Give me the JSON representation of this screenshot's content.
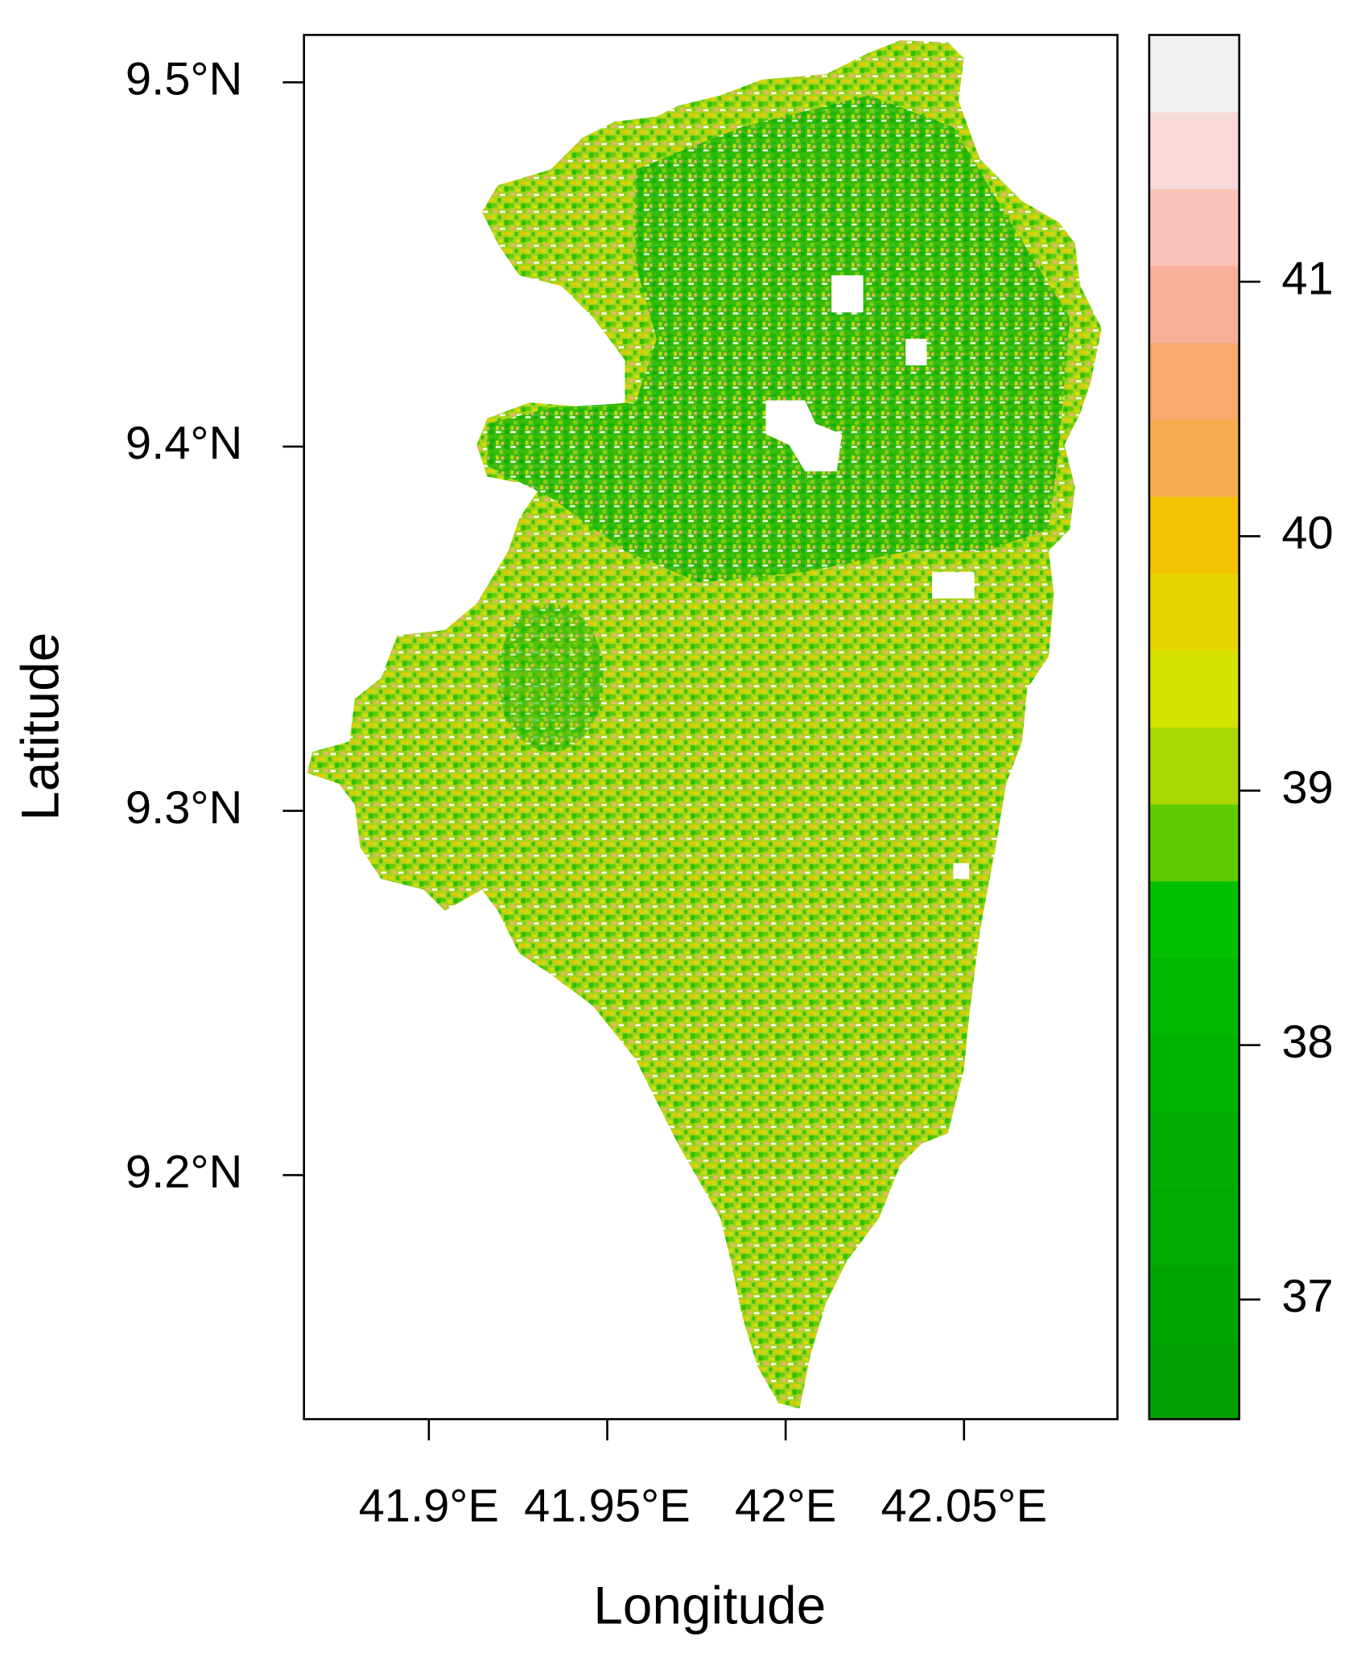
{
  "chart_data": {
    "type": "raster-map",
    "x_label": "Longitude",
    "y_label": "Latitude",
    "xlim": [
      41.865,
      42.093
    ],
    "xticks": [
      {
        "value": 41.9,
        "label": "41.9°E"
      },
      {
        "value": 41.95,
        "label": "41.95°E"
      },
      {
        "value": 42,
        "label": "42°E"
      },
      {
        "value": 42.05,
        "label": "42.05°E"
      }
    ],
    "ylim": [
      9.133,
      9.513
    ],
    "yticks": [
      {
        "value": 9.2,
        "label": "9.2°N"
      },
      {
        "value": 9.3,
        "label": "9.3°N"
      },
      {
        "value": 9.4,
        "label": "9.4°N"
      },
      {
        "value": 9.5,
        "label": "9.5°N"
      }
    ],
    "colorbar": {
      "lim": [
        36.53,
        41.97
      ],
      "ticks": [
        37,
        38,
        39,
        40,
        41
      ],
      "colors": [
        "#00a000",
        "#00a500",
        "#00aa00",
        "#00ae00",
        "#00b300",
        "#00b800",
        "#00c000",
        "#5ecc00",
        "#a8d800",
        "#d4e200",
        "#e8d400",
        "#f2c200",
        "#f6ad4d",
        "#f8a96e",
        "#f9b09a",
        "#fbc4b8",
        "#f8d8d8",
        "#f0f0f0"
      ]
    }
  }
}
